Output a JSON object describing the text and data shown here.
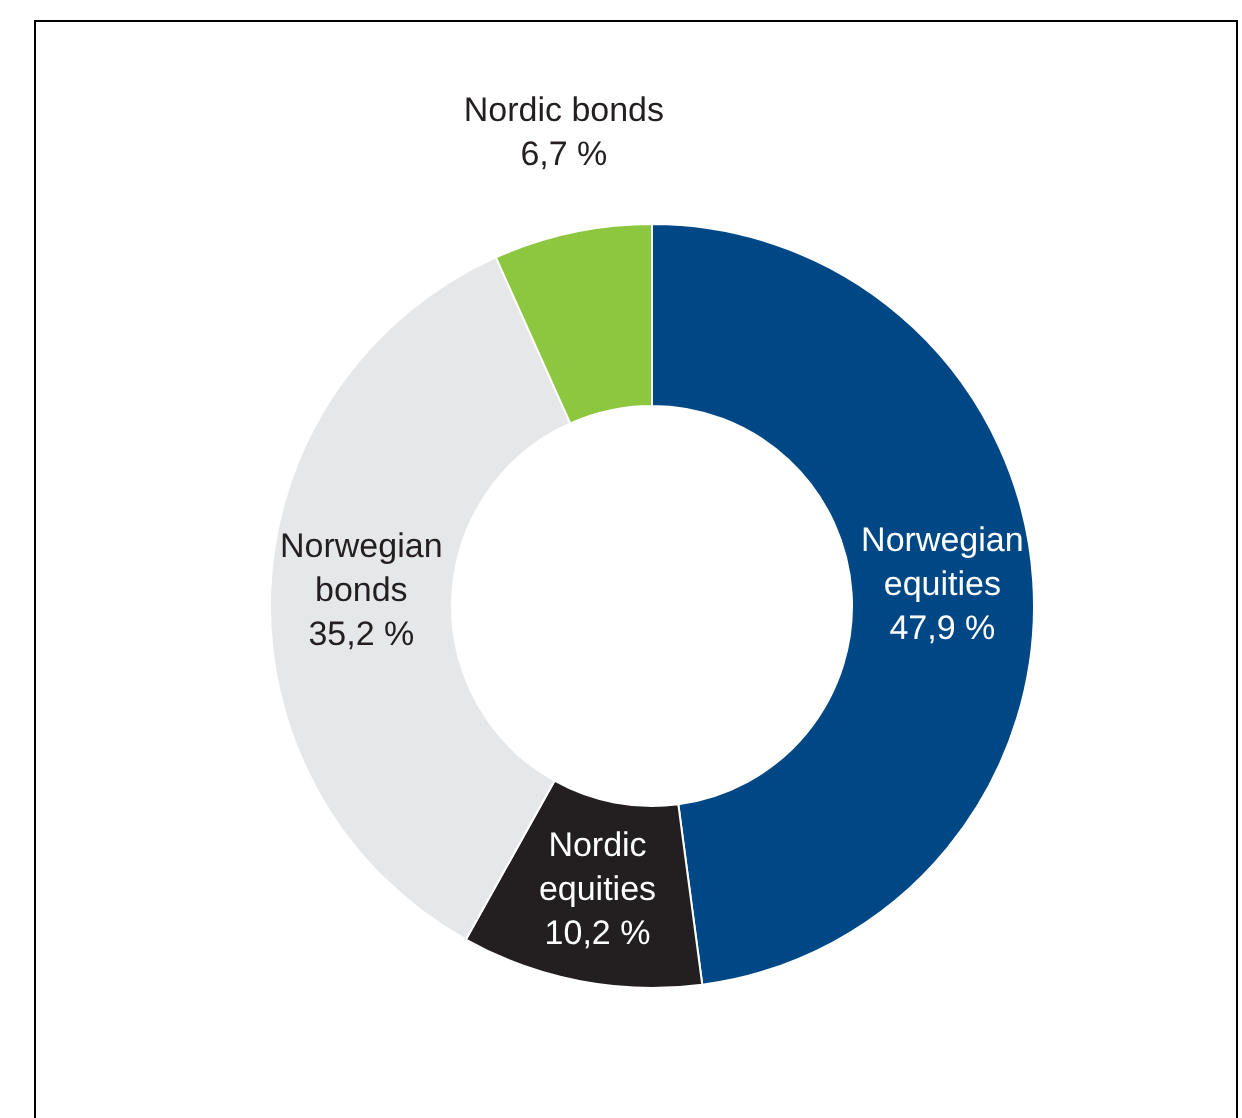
{
  "chart_data": {
    "type": "donut",
    "categories": [
      "Norwegian equities",
      "Nordic equities",
      "Norwegian bonds",
      "Nordic bonds"
    ],
    "values": [
      47.9,
      10.2,
      35.2,
      6.7
    ],
    "colors": [
      "#004785",
      "#231f20",
      "#e6e7e8",
      "#8dc63f"
    ],
    "value_labels": [
      "47,9 %",
      "10,2 %",
      "35,2 %",
      "6,7 %"
    ]
  }
}
